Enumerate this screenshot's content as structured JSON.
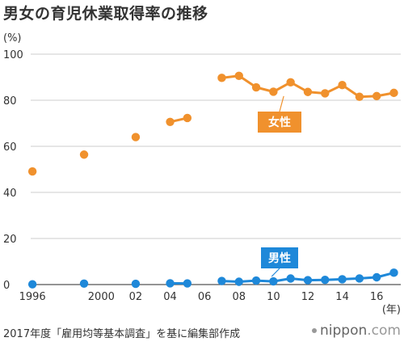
{
  "title": "男女の育児休業取得率の推移",
  "source": "2017年度「雇用均等基本調査」を基に編集部作成",
  "brand": {
    "name": "nippon",
    "tld": ".com"
  },
  "colors": {
    "female": "#F0912D",
    "male": "#1E88D9",
    "grid": "#bbbbbb",
    "zero_axis": "#555555"
  },
  "chart_data": {
    "type": "line",
    "title": "男女の育児休業取得率の推移",
    "ylabel": "(%)",
    "xlabel": "(年)",
    "xlim": [
      1995.9,
      2017.4
    ],
    "ylim": [
      0,
      100
    ],
    "yticks": [
      0,
      20,
      40,
      60,
      80,
      100
    ],
    "xticks": [
      {
        "value": 1996,
        "label": "1996"
      },
      {
        "value": 2000,
        "label": "2000"
      },
      {
        "value": 2002,
        "label": "02"
      },
      {
        "value": 2004,
        "label": "04"
      },
      {
        "value": 2006,
        "label": "06"
      },
      {
        "value": 2008,
        "label": "08"
      },
      {
        "value": 2010,
        "label": "10"
      },
      {
        "value": 2012,
        "label": "12"
      },
      {
        "value": 2014,
        "label": "14"
      },
      {
        "value": 2016,
        "label": "16"
      }
    ],
    "grid": true,
    "series": [
      {
        "name": "女性",
        "color": "#F0912D",
        "segments": [
          [
            [
              1996,
              49.1
            ]
          ],
          [
            [
              1999,
              56.4
            ]
          ],
          [
            [
              2002,
              64.0
            ]
          ],
          [
            [
              2004,
              70.6
            ],
            [
              2005,
              72.3
            ]
          ],
          [
            [
              2007,
              89.7
            ],
            [
              2008,
              90.6
            ],
            [
              2009,
              85.6
            ],
            [
              2010,
              83.7
            ],
            [
              2011,
              87.8
            ],
            [
              2012,
              83.6
            ],
            [
              2013,
              83.0
            ],
            [
              2014,
              86.6
            ],
            [
              2015,
              81.5
            ],
            [
              2016,
              81.8
            ],
            [
              2017,
              83.2
            ]
          ]
        ]
      },
      {
        "name": "男性",
        "color": "#1E88D9",
        "segments": [
          [
            [
              1996,
              0.12
            ]
          ],
          [
            [
              1999,
              0.42
            ]
          ],
          [
            [
              2002,
              0.33
            ]
          ],
          [
            [
              2004,
              0.56
            ],
            [
              2005,
              0.5
            ]
          ],
          [
            [
              2007,
              1.56
            ],
            [
              2008,
              1.23
            ],
            [
              2009,
              1.72
            ],
            [
              2010,
              1.38
            ],
            [
              2011,
              2.63
            ],
            [
              2012,
              1.89
            ],
            [
              2013,
              2.03
            ],
            [
              2014,
              2.3
            ],
            [
              2015,
              2.65
            ],
            [
              2016,
              3.16
            ],
            [
              2017,
              5.14
            ]
          ]
        ]
      }
    ]
  }
}
